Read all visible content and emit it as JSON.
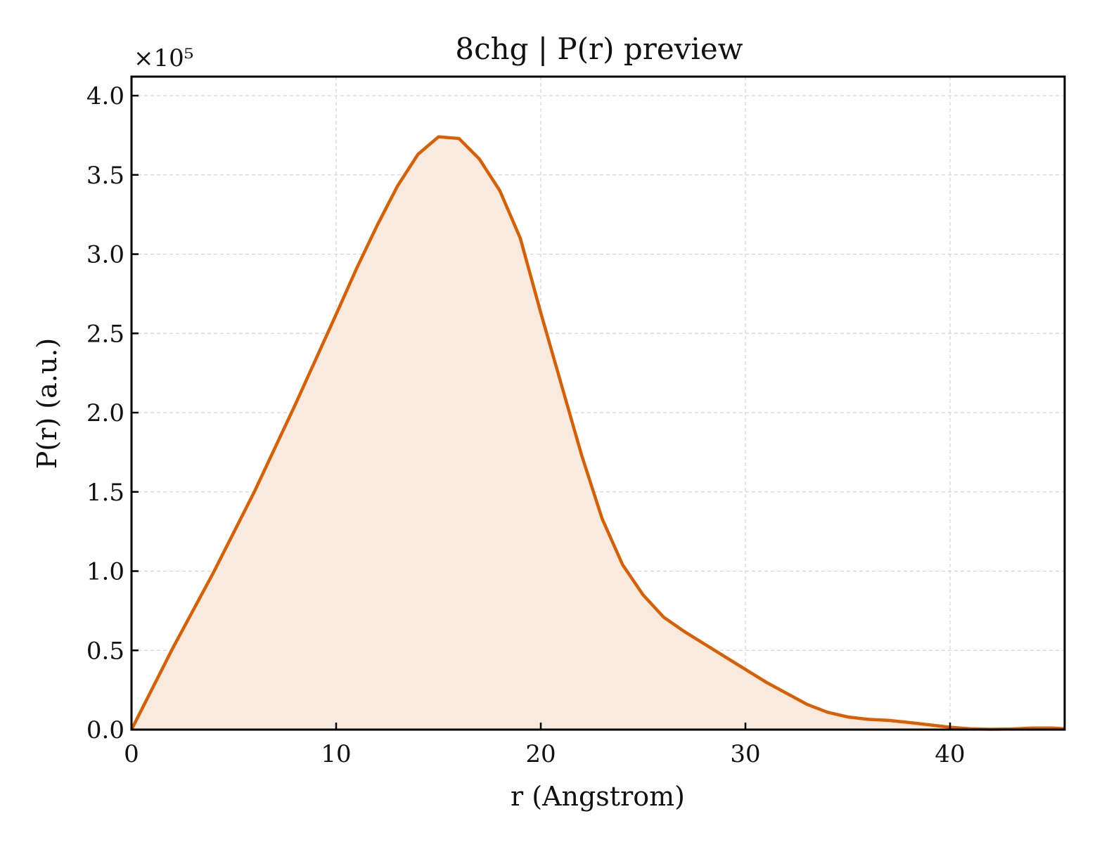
{
  "chart_data": {
    "type": "area",
    "title": "8chg | P(r) preview",
    "xlabel": "r (Angstrom)",
    "ylabel": "P(r) (a.u.)",
    "y_multiplier_label": "×10⁵",
    "y_scale_factor": 100000,
    "xlim": [
      0,
      45.6
    ],
    "ylim": [
      0,
      4.12
    ],
    "x_ticks": [
      0,
      10,
      20,
      30,
      40
    ],
    "x_tick_labels": [
      "0",
      "10",
      "20",
      "30",
      "40"
    ],
    "y_ticks": [
      0,
      0.5,
      1.0,
      1.5,
      2.0,
      2.5,
      3.0,
      3.5,
      4.0
    ],
    "y_tick_labels": [
      "0.0",
      "0.5",
      "1.0",
      "1.5",
      "2.0",
      "2.5",
      "3.0",
      "3.5",
      "4.0"
    ],
    "grid": true,
    "line_color": "#d95f02",
    "fill_color": "#f9eae0",
    "series": [
      {
        "x": [
          0,
          2,
          4,
          6,
          8,
          10,
          11,
          12,
          13,
          14,
          15,
          16,
          17,
          18,
          19,
          20,
          21,
          22,
          23,
          24,
          25,
          26,
          27,
          28,
          29,
          30,
          31,
          32,
          33,
          34,
          35,
          36,
          37,
          38,
          39,
          40,
          41,
          42,
          43,
          44,
          45,
          45.6
        ],
        "y": [
          0.0,
          0.51,
          0.99,
          1.5,
          2.05,
          2.62,
          2.91,
          3.18,
          3.43,
          3.63,
          3.74,
          3.73,
          3.6,
          3.4,
          3.1,
          2.63,
          2.18,
          1.73,
          1.33,
          1.04,
          0.85,
          0.71,
          0.62,
          0.54,
          0.46,
          0.38,
          0.3,
          0.23,
          0.16,
          0.11,
          0.08,
          0.065,
          0.058,
          0.045,
          0.03,
          0.015,
          0.005,
          0.002,
          0.004,
          0.01,
          0.01,
          0.005
        ]
      }
    ]
  }
}
